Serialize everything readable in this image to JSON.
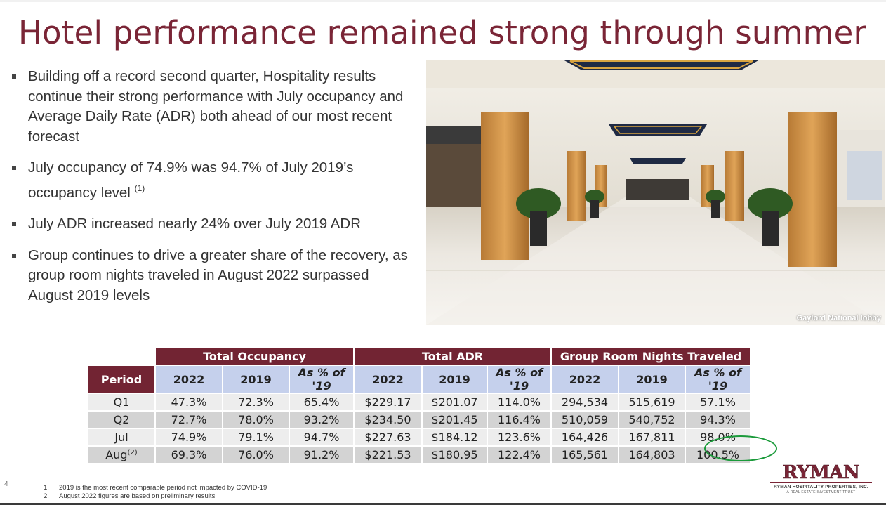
{
  "slide": {
    "title": "Hotel performance remained strong through summer",
    "page_number": "4"
  },
  "bullets": [
    {
      "text": "Building off a record second quarter, Hospitality results continue their strong performance with July occupancy and Average Daily Rate (ADR) both ahead of our most recent forecast",
      "sup": ""
    },
    {
      "text": "July occupancy of 74.9% was 94.7% of July 2019’s occupancy level",
      "sup": "(1)"
    },
    {
      "text": "July ADR increased nearly 24% over July 2019 ADR",
      "sup": ""
    },
    {
      "text": "Group continues to drive a greater share of the recovery, as group room nights traveled in August 2022 surpassed August 2019 levels",
      "sup": ""
    }
  ],
  "photo": {
    "caption": "Gaylord National lobby"
  },
  "table": {
    "groups": [
      "Total Occupancy",
      "Total ADR",
      "Group Room Nights Traveled"
    ],
    "period_header": "Period",
    "subheaders": [
      "2022",
      "2019",
      "As % of '19",
      "2022",
      "2019",
      "As % of '19",
      "2022",
      "2019",
      "As % of '19"
    ],
    "rows": [
      {
        "period": "Q1",
        "sup": "",
        "cells": [
          "47.3%",
          "72.3%",
          "65.4%",
          "$229.17",
          "$201.07",
          "114.0%",
          "294,534",
          "515,619",
          "57.1%"
        ]
      },
      {
        "period": "Q2",
        "sup": "",
        "cells": [
          "72.7%",
          "78.0%",
          "93.2%",
          "$234.50",
          "$201.45",
          "116.4%",
          "510,059",
          "540,752",
          "94.3%"
        ]
      },
      {
        "period": "Jul",
        "sup": "",
        "cells": [
          "74.9%",
          "79.1%",
          "94.7%",
          "$227.63",
          "$184.12",
          "123.6%",
          "164,426",
          "167,811",
          "98.0%"
        ]
      },
      {
        "period": "Aug",
        "sup": "(2)",
        "cells": [
          "69.3%",
          "76.0%",
          "91.2%",
          "$221.53",
          "$180.95",
          "122.4%",
          "165,561",
          "164,803",
          "100.5%"
        ]
      }
    ]
  },
  "footnotes": [
    {
      "num": "1.",
      "text": "2019 is the most recent comparable period not impacted by COVID-19"
    },
    {
      "num": "2.",
      "text": "August 2022 figures are based on preliminary results"
    }
  ],
  "logo": {
    "word": "RYMAN",
    "sub": "RYMAN HOSPITALITY PROPERTIES, INC.",
    "sub2": "A REAL ESTATE INVESTMENT TRUST"
  },
  "colors": {
    "brand": "#7a2536",
    "table_header": "#722433",
    "subheader": "#c5d0ec",
    "row_light": "#ededed",
    "row_dark": "#d3d3d3",
    "highlight_ring": "#1a9a3a"
  }
}
